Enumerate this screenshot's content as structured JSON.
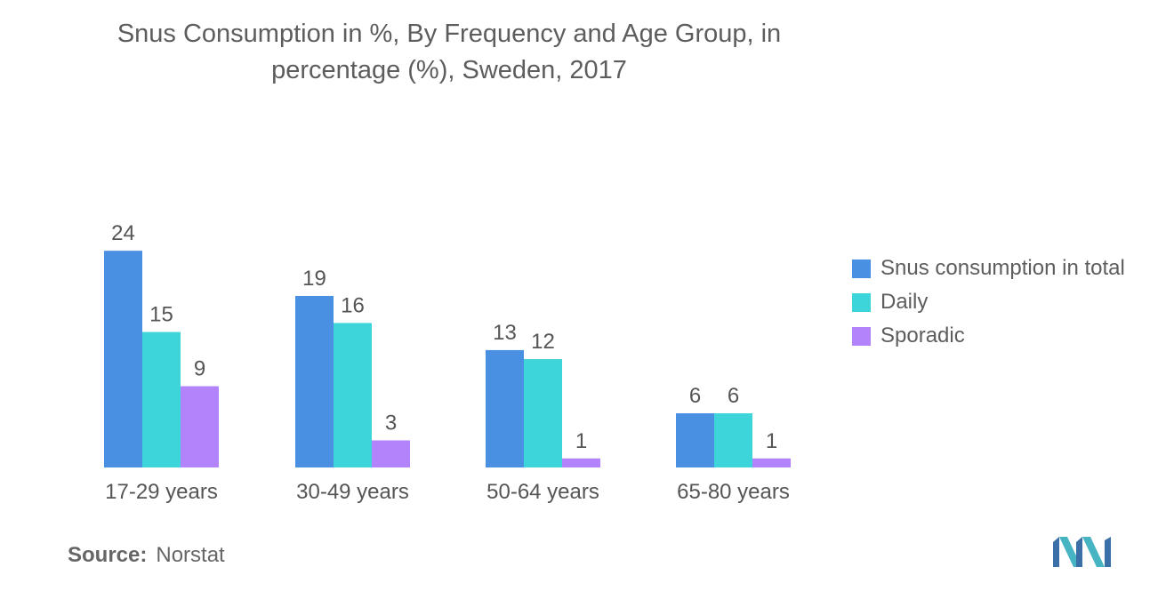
{
  "title_line1": "Snus Consumption in %, By Frequency and Age Group, in",
  "title_line2": "percentage (%), Sweden, 2017",
  "source": {
    "label": "Source:",
    "value": "Norstat"
  },
  "colors": {
    "total": "#4a90e2",
    "daily": "#3dd4da",
    "sporadic": "#b283fb"
  },
  "chart_data": {
    "type": "bar",
    "title": "Snus Consumption in %, By Frequency and Age Group, in percentage (%), Sweden, 2017",
    "categories": [
      "17-29 years",
      "30-49 years",
      "50-64 years",
      "65-80 years"
    ],
    "series": [
      {
        "name": "Snus consumption in total",
        "values": [
          24,
          19,
          13,
          6
        ],
        "color": "#4a90e2"
      },
      {
        "name": "Daily",
        "values": [
          15,
          16,
          12,
          6
        ],
        "color": "#3dd4da"
      },
      {
        "name": "Sporadic",
        "values": [
          9,
          3,
          1,
          1
        ],
        "color": "#b283fb"
      }
    ],
    "ylim": [
      0,
      24
    ],
    "xlabel": "",
    "ylabel": "",
    "grid": false,
    "legend_position": "right"
  }
}
